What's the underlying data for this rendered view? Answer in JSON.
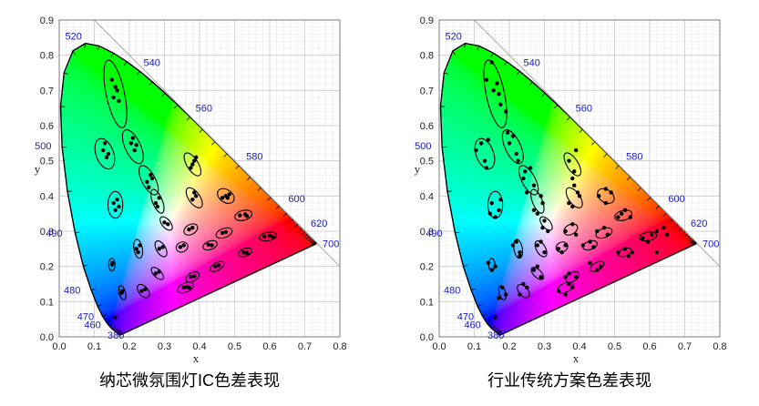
{
  "chart_data": [
    {
      "type": "scatter",
      "title": "纳芯微氛围灯IC色差表现",
      "xlabel": "x",
      "ylabel": "y",
      "xlim": [
        0,
        0.8
      ],
      "ylim": [
        0,
        0.9
      ],
      "x_ticks": [
        "0.0",
        "0.1",
        "0.2",
        "0.3",
        "0.4",
        "0.5",
        "0.6",
        "0.7",
        "0.8"
      ],
      "y_ticks": [
        "0.0",
        "0.1",
        "0.2",
        "0.3",
        "0.4",
        "0.5",
        "0.6",
        "0.7",
        "0.8",
        "0.9"
      ],
      "wavelength_labels": [
        {
          "text": "380",
          "x": 0.174,
          "y": 0.005
        },
        {
          "text": "460",
          "x": 0.144,
          "y": 0.03
        },
        {
          "text": "470",
          "x": 0.124,
          "y": 0.058
        },
        {
          "text": "480",
          "x": 0.091,
          "y": 0.133
        },
        {
          "text": "490",
          "x": 0.045,
          "y": 0.295
        },
        {
          "text": "500",
          "x": 0.008,
          "y": 0.538
        },
        {
          "text": "520",
          "x": 0.074,
          "y": 0.834
        },
        {
          "text": "540",
          "x": 0.23,
          "y": 0.754
        },
        {
          "text": "560",
          "x": 0.373,
          "y": 0.624
        },
        {
          "text": "580",
          "x": 0.512,
          "y": 0.487
        },
        {
          "text": "600",
          "x": 0.627,
          "y": 0.373
        },
        {
          "text": "620",
          "x": 0.691,
          "y": 0.308
        },
        {
          "text": "700",
          "x": 0.735,
          "y": 0.265
        }
      ],
      "ellipses": [
        {
          "cx": 0.16,
          "cy": 0.69,
          "rx": 0.026,
          "ry": 0.098,
          "rot": -12
        },
        {
          "cx": 0.13,
          "cy": 0.52,
          "rx": 0.025,
          "ry": 0.045,
          "rot": -20
        },
        {
          "cx": 0.21,
          "cy": 0.54,
          "rx": 0.022,
          "ry": 0.052,
          "rot": -25
        },
        {
          "cx": 0.16,
          "cy": 0.375,
          "rx": 0.021,
          "ry": 0.038,
          "rot": 0
        },
        {
          "cx": 0.255,
          "cy": 0.445,
          "rx": 0.019,
          "ry": 0.046,
          "rot": -28
        },
        {
          "cx": 0.28,
          "cy": 0.385,
          "rx": 0.014,
          "ry": 0.036,
          "rot": -22
        },
        {
          "cx": 0.38,
          "cy": 0.49,
          "rx": 0.016,
          "ry": 0.037,
          "rot": -32
        },
        {
          "cx": 0.385,
          "cy": 0.395,
          "rx": 0.016,
          "ry": 0.033,
          "rot": -35
        },
        {
          "cx": 0.475,
          "cy": 0.4,
          "rx": 0.018,
          "ry": 0.026,
          "rot": -55
        },
        {
          "cx": 0.525,
          "cy": 0.345,
          "rx": 0.025,
          "ry": 0.014,
          "rot": -15
        },
        {
          "cx": 0.595,
          "cy": 0.285,
          "rx": 0.025,
          "ry": 0.012,
          "rot": -10
        },
        {
          "cx": 0.305,
          "cy": 0.322,
          "rx": 0.012,
          "ry": 0.023,
          "rot": -40
        },
        {
          "cx": 0.375,
          "cy": 0.305,
          "rx": 0.021,
          "ry": 0.014,
          "rot": -30
        },
        {
          "cx": 0.47,
          "cy": 0.295,
          "rx": 0.024,
          "ry": 0.013,
          "rot": -20
        },
        {
          "cx": 0.225,
          "cy": 0.25,
          "rx": 0.012,
          "ry": 0.027,
          "rot": -10
        },
        {
          "cx": 0.29,
          "cy": 0.25,
          "rx": 0.013,
          "ry": 0.025,
          "rot": -30
        },
        {
          "cx": 0.35,
          "cy": 0.255,
          "rx": 0.017,
          "ry": 0.014,
          "rot": -25
        },
        {
          "cx": 0.43,
          "cy": 0.26,
          "rx": 0.021,
          "ry": 0.012,
          "rot": -20
        },
        {
          "cx": 0.53,
          "cy": 0.24,
          "rx": 0.02,
          "ry": 0.011,
          "rot": -20
        },
        {
          "cx": 0.15,
          "cy": 0.205,
          "rx": 0.009,
          "ry": 0.018,
          "rot": 0
        },
        {
          "cx": 0.28,
          "cy": 0.18,
          "rx": 0.011,
          "ry": 0.022,
          "rot": -45
        },
        {
          "cx": 0.38,
          "cy": 0.17,
          "rx": 0.021,
          "ry": 0.012,
          "rot": -30
        },
        {
          "cx": 0.45,
          "cy": 0.2,
          "rx": 0.022,
          "ry": 0.011,
          "rot": -30
        },
        {
          "cx": 0.18,
          "cy": 0.125,
          "rx": 0.009,
          "ry": 0.021,
          "rot": -15
        },
        {
          "cx": 0.24,
          "cy": 0.13,
          "rx": 0.013,
          "ry": 0.022,
          "rot": -40
        },
        {
          "cx": 0.36,
          "cy": 0.14,
          "rx": 0.024,
          "ry": 0.013,
          "rot": -25
        }
      ],
      "points": [
        [
          0.15,
          0.73
        ],
        [
          0.165,
          0.7
        ],
        [
          0.155,
          0.68
        ],
        [
          0.17,
          0.67
        ],
        [
          0.16,
          0.71
        ],
        [
          0.125,
          0.53
        ],
        [
          0.135,
          0.51
        ],
        [
          0.13,
          0.55
        ],
        [
          0.14,
          0.52
        ],
        [
          0.205,
          0.55
        ],
        [
          0.215,
          0.53
        ],
        [
          0.21,
          0.565
        ],
        [
          0.22,
          0.545
        ],
        [
          0.155,
          0.38
        ],
        [
          0.16,
          0.36
        ],
        [
          0.165,
          0.39
        ],
        [
          0.17,
          0.37
        ],
        [
          0.25,
          0.44
        ],
        [
          0.26,
          0.46
        ],
        [
          0.255,
          0.425
        ],
        [
          0.265,
          0.45
        ],
        [
          0.275,
          0.38
        ],
        [
          0.285,
          0.395
        ],
        [
          0.28,
          0.37
        ],
        [
          0.375,
          0.48
        ],
        [
          0.385,
          0.5
        ],
        [
          0.38,
          0.49
        ],
        [
          0.39,
          0.51
        ],
        [
          0.38,
          0.39
        ],
        [
          0.39,
          0.4
        ],
        [
          0.385,
          0.41
        ],
        [
          0.465,
          0.395
        ],
        [
          0.475,
          0.4
        ],
        [
          0.485,
          0.405
        ],
        [
          0.48,
          0.395
        ],
        [
          0.515,
          0.345
        ],
        [
          0.53,
          0.348
        ],
        [
          0.535,
          0.343
        ],
        [
          0.585,
          0.285
        ],
        [
          0.6,
          0.288
        ],
        [
          0.61,
          0.283
        ],
        [
          0.3,
          0.325
        ],
        [
          0.31,
          0.32
        ],
        [
          0.37,
          0.305
        ],
        [
          0.38,
          0.31
        ],
        [
          0.465,
          0.295
        ],
        [
          0.475,
          0.298
        ],
        [
          0.22,
          0.25
        ],
        [
          0.23,
          0.26
        ],
        [
          0.225,
          0.24
        ],
        [
          0.285,
          0.25
        ],
        [
          0.295,
          0.255
        ],
        [
          0.345,
          0.255
        ],
        [
          0.355,
          0.26
        ],
        [
          0.425,
          0.262
        ],
        [
          0.435,
          0.26
        ],
        [
          0.525,
          0.24
        ],
        [
          0.535,
          0.238
        ],
        [
          0.15,
          0.205
        ],
        [
          0.152,
          0.21
        ],
        [
          0.275,
          0.18
        ],
        [
          0.285,
          0.185
        ],
        [
          0.375,
          0.17
        ],
        [
          0.385,
          0.172
        ],
        [
          0.445,
          0.2
        ],
        [
          0.455,
          0.203
        ],
        [
          0.178,
          0.125
        ],
        [
          0.18,
          0.13
        ],
        [
          0.235,
          0.13
        ],
        [
          0.245,
          0.135
        ],
        [
          0.355,
          0.14
        ],
        [
          0.365,
          0.142
        ],
        [
          0.37,
          0.14
        ],
        [
          0.16,
          0.055
        ]
      ]
    },
    {
      "type": "scatter",
      "title": "行业传统方案色差表现",
      "xlabel": "x",
      "ylabel": "y",
      "xlim": [
        0,
        0.8
      ],
      "ylim": [
        0,
        0.9
      ],
      "x_ticks": [
        "0.0",
        "0.1",
        "0.2",
        "0.3",
        "0.4",
        "0.5",
        "0.6",
        "0.7",
        "0.8"
      ],
      "y_ticks": [
        "0.0",
        "0.1",
        "0.2",
        "0.3",
        "0.4",
        "0.5",
        "0.6",
        "0.7",
        "0.8",
        "0.9"
      ],
      "wavelength_labels": [
        {
          "text": "380",
          "x": 0.174,
          "y": 0.005
        },
        {
          "text": "460",
          "x": 0.144,
          "y": 0.03
        },
        {
          "text": "470",
          "x": 0.124,
          "y": 0.058
        },
        {
          "text": "480",
          "x": 0.091,
          "y": 0.133
        },
        {
          "text": "490",
          "x": 0.045,
          "y": 0.295
        },
        {
          "text": "500",
          "x": 0.008,
          "y": 0.538
        },
        {
          "text": "520",
          "x": 0.074,
          "y": 0.834
        },
        {
          "text": "540",
          "x": 0.23,
          "y": 0.754
        },
        {
          "text": "560",
          "x": 0.373,
          "y": 0.624
        },
        {
          "text": "580",
          "x": 0.512,
          "y": 0.487
        },
        {
          "text": "600",
          "x": 0.627,
          "y": 0.373
        },
        {
          "text": "620",
          "x": 0.691,
          "y": 0.308
        },
        {
          "text": "700",
          "x": 0.735,
          "y": 0.265
        }
      ],
      "ellipses": [
        {
          "cx": 0.16,
          "cy": 0.69,
          "rx": 0.026,
          "ry": 0.098,
          "rot": -12
        },
        {
          "cx": 0.13,
          "cy": 0.52,
          "rx": 0.025,
          "ry": 0.045,
          "rot": -20
        },
        {
          "cx": 0.21,
          "cy": 0.54,
          "rx": 0.022,
          "ry": 0.052,
          "rot": -25
        },
        {
          "cx": 0.16,
          "cy": 0.375,
          "rx": 0.021,
          "ry": 0.038,
          "rot": 0
        },
        {
          "cx": 0.255,
          "cy": 0.445,
          "rx": 0.019,
          "ry": 0.046,
          "rot": -28
        },
        {
          "cx": 0.28,
          "cy": 0.385,
          "rx": 0.014,
          "ry": 0.036,
          "rot": -22
        },
        {
          "cx": 0.38,
          "cy": 0.49,
          "rx": 0.016,
          "ry": 0.037,
          "rot": -32
        },
        {
          "cx": 0.385,
          "cy": 0.395,
          "rx": 0.016,
          "ry": 0.033,
          "rot": -35
        },
        {
          "cx": 0.475,
          "cy": 0.4,
          "rx": 0.018,
          "ry": 0.026,
          "rot": -55
        },
        {
          "cx": 0.525,
          "cy": 0.345,
          "rx": 0.025,
          "ry": 0.014,
          "rot": -15
        },
        {
          "cx": 0.595,
          "cy": 0.285,
          "rx": 0.025,
          "ry": 0.012,
          "rot": -10
        },
        {
          "cx": 0.305,
          "cy": 0.322,
          "rx": 0.012,
          "ry": 0.023,
          "rot": -40
        },
        {
          "cx": 0.375,
          "cy": 0.305,
          "rx": 0.021,
          "ry": 0.014,
          "rot": -30
        },
        {
          "cx": 0.47,
          "cy": 0.295,
          "rx": 0.024,
          "ry": 0.013,
          "rot": -20
        },
        {
          "cx": 0.225,
          "cy": 0.25,
          "rx": 0.012,
          "ry": 0.027,
          "rot": -10
        },
        {
          "cx": 0.29,
          "cy": 0.25,
          "rx": 0.013,
          "ry": 0.025,
          "rot": -30
        },
        {
          "cx": 0.35,
          "cy": 0.255,
          "rx": 0.017,
          "ry": 0.014,
          "rot": -25
        },
        {
          "cx": 0.43,
          "cy": 0.26,
          "rx": 0.021,
          "ry": 0.012,
          "rot": -20
        },
        {
          "cx": 0.53,
          "cy": 0.24,
          "rx": 0.02,
          "ry": 0.011,
          "rot": -20
        },
        {
          "cx": 0.15,
          "cy": 0.205,
          "rx": 0.009,
          "ry": 0.018,
          "rot": 0
        },
        {
          "cx": 0.28,
          "cy": 0.18,
          "rx": 0.011,
          "ry": 0.022,
          "rot": -45
        },
        {
          "cx": 0.38,
          "cy": 0.17,
          "rx": 0.021,
          "ry": 0.012,
          "rot": -30
        },
        {
          "cx": 0.45,
          "cy": 0.2,
          "rx": 0.022,
          "ry": 0.011,
          "rot": -30
        },
        {
          "cx": 0.18,
          "cy": 0.125,
          "rx": 0.009,
          "ry": 0.021,
          "rot": -15
        },
        {
          "cx": 0.24,
          "cy": 0.13,
          "rx": 0.013,
          "ry": 0.022,
          "rot": -40
        },
        {
          "cx": 0.36,
          "cy": 0.14,
          "rx": 0.024,
          "ry": 0.013,
          "rot": -25
        }
      ],
      "points": [
        [
          0.135,
          0.73
        ],
        [
          0.15,
          0.78
        ],
        [
          0.165,
          0.72
        ],
        [
          0.17,
          0.69
        ],
        [
          0.175,
          0.66
        ],
        [
          0.19,
          0.64
        ],
        [
          0.155,
          0.7
        ],
        [
          0.12,
          0.55
        ],
        [
          0.13,
          0.5
        ],
        [
          0.14,
          0.56
        ],
        [
          0.105,
          0.53
        ],
        [
          0.135,
          0.48
        ],
        [
          0.2,
          0.55
        ],
        [
          0.21,
          0.57
        ],
        [
          0.22,
          0.52
        ],
        [
          0.195,
          0.58
        ],
        [
          0.225,
          0.5
        ],
        [
          0.15,
          0.38
        ],
        [
          0.16,
          0.34
        ],
        [
          0.175,
          0.39
        ],
        [
          0.145,
          0.35
        ],
        [
          0.17,
          0.36
        ],
        [
          0.24,
          0.45
        ],
        [
          0.26,
          0.48
        ],
        [
          0.25,
          0.41
        ],
        [
          0.27,
          0.43
        ],
        [
          0.245,
          0.47
        ],
        [
          0.27,
          0.36
        ],
        [
          0.29,
          0.4
        ],
        [
          0.28,
          0.35
        ],
        [
          0.295,
          0.38
        ],
        [
          0.37,
          0.5
        ],
        [
          0.39,
          0.53
        ],
        [
          0.385,
          0.47
        ],
        [
          0.38,
          0.45
        ],
        [
          0.37,
          0.38
        ],
        [
          0.395,
          0.41
        ],
        [
          0.38,
          0.37
        ],
        [
          0.4,
          0.4
        ],
        [
          0.385,
          0.43
        ],
        [
          0.455,
          0.4
        ],
        [
          0.475,
          0.38
        ],
        [
          0.49,
          0.41
        ],
        [
          0.475,
          0.42
        ],
        [
          0.51,
          0.34
        ],
        [
          0.53,
          0.36
        ],
        [
          0.545,
          0.34
        ],
        [
          0.52,
          0.35
        ],
        [
          0.58,
          0.28
        ],
        [
          0.605,
          0.29
        ],
        [
          0.62,
          0.3
        ],
        [
          0.595,
          0.27
        ],
        [
          0.3,
          0.33
        ],
        [
          0.31,
          0.3
        ],
        [
          0.295,
          0.31
        ],
        [
          0.36,
          0.3
        ],
        [
          0.38,
          0.32
        ],
        [
          0.39,
          0.29
        ],
        [
          0.45,
          0.3
        ],
        [
          0.48,
          0.29
        ],
        [
          0.47,
          0.31
        ],
        [
          0.21,
          0.26
        ],
        [
          0.23,
          0.24
        ],
        [
          0.22,
          0.27
        ],
        [
          0.23,
          0.23
        ],
        [
          0.28,
          0.26
        ],
        [
          0.3,
          0.24
        ],
        [
          0.29,
          0.27
        ],
        [
          0.34,
          0.25
        ],
        [
          0.36,
          0.26
        ],
        [
          0.35,
          0.24
        ],
        [
          0.41,
          0.26
        ],
        [
          0.44,
          0.255
        ],
        [
          0.43,
          0.27
        ],
        [
          0.51,
          0.24
        ],
        [
          0.54,
          0.23
        ],
        [
          0.53,
          0.25
        ],
        [
          0.55,
          0.24
        ],
        [
          0.14,
          0.21
        ],
        [
          0.15,
          0.19
        ],
        [
          0.16,
          0.2
        ],
        [
          0.27,
          0.19
        ],
        [
          0.29,
          0.17
        ],
        [
          0.28,
          0.2
        ],
        [
          0.36,
          0.17
        ],
        [
          0.39,
          0.17
        ],
        [
          0.37,
          0.18
        ],
        [
          0.43,
          0.21
        ],
        [
          0.46,
          0.2
        ],
        [
          0.45,
          0.19
        ],
        [
          0.17,
          0.11
        ],
        [
          0.18,
          0.14
        ],
        [
          0.19,
          0.12
        ],
        [
          0.23,
          0.12
        ],
        [
          0.25,
          0.14
        ],
        [
          0.24,
          0.15
        ],
        [
          0.34,
          0.13
        ],
        [
          0.37,
          0.15
        ],
        [
          0.36,
          0.12
        ],
        [
          0.38,
          0.14
        ],
        [
          0.16,
          0.055
        ],
        [
          0.62,
          0.24
        ],
        [
          0.64,
          0.31
        ],
        [
          0.65,
          0.29
        ]
      ]
    }
  ]
}
